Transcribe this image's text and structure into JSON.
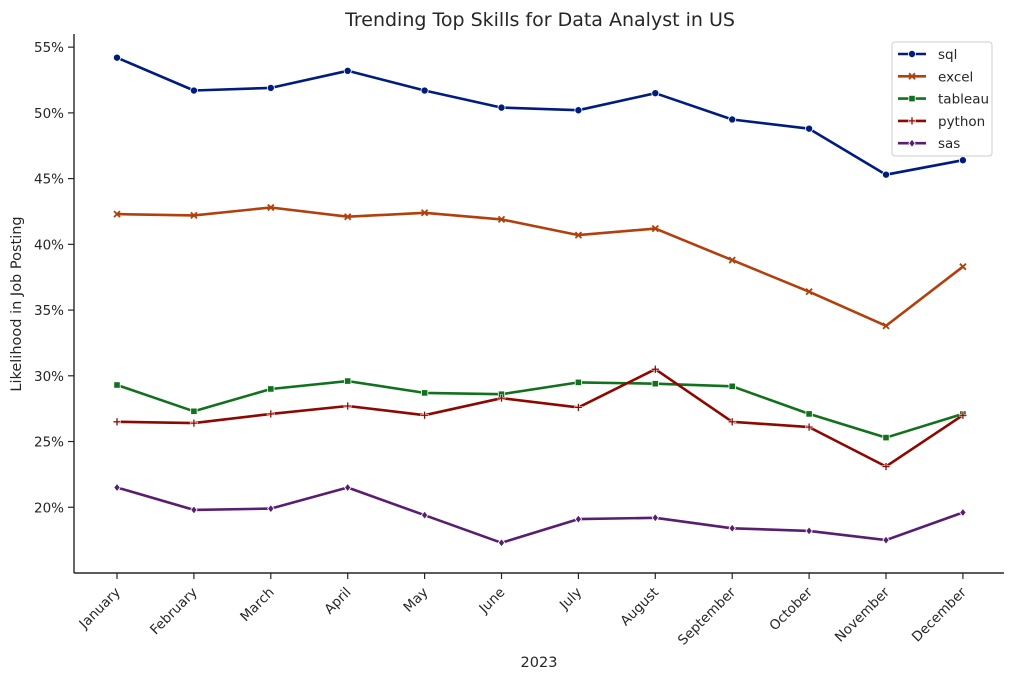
{
  "chart_data": {
    "type": "line",
    "title": "Trending Top Skills for Data Analyst in US",
    "xlabel": "2023",
    "ylabel": "Likelihood in Job Posting",
    "categories": [
      "January",
      "February",
      "March",
      "April",
      "May",
      "June",
      "July",
      "August",
      "September",
      "October",
      "November",
      "December"
    ],
    "y_ticks": [
      "20%",
      "25%",
      "30%",
      "35%",
      "40%",
      "45%",
      "50%",
      "55%"
    ],
    "ylim": [
      15,
      56
    ],
    "grid": false,
    "legend_position": "top-right",
    "series": [
      {
        "name": "sql",
        "color": "#001c7f",
        "marker": "circle",
        "values": [
          54.2,
          51.7,
          51.9,
          53.2,
          51.7,
          50.4,
          50.2,
          51.5,
          49.5,
          48.8,
          45.3,
          46.4
        ]
      },
      {
        "name": "excel",
        "color": "#b1400d",
        "marker": "x",
        "values": [
          42.3,
          42.2,
          42.8,
          42.1,
          42.4,
          41.9,
          40.7,
          41.2,
          38.8,
          36.4,
          33.8,
          38.3
        ]
      },
      {
        "name": "tableau",
        "color": "#12711c",
        "marker": "square",
        "values": [
          29.3,
          27.3,
          29.0,
          29.6,
          28.7,
          28.6,
          29.5,
          29.4,
          29.2,
          27.1,
          25.3,
          27.1
        ]
      },
      {
        "name": "python",
        "color": "#8c0800",
        "marker": "plus",
        "values": [
          26.5,
          26.4,
          27.1,
          27.7,
          27.0,
          28.3,
          27.6,
          30.5,
          26.5,
          26.1,
          23.1,
          27.0
        ]
      },
      {
        "name": "sas",
        "color": "#591e71",
        "marker": "diamond",
        "values": [
          21.5,
          19.8,
          19.9,
          21.5,
          19.4,
          17.3,
          19.1,
          19.2,
          18.4,
          18.2,
          17.5,
          19.6
        ]
      }
    ]
  }
}
